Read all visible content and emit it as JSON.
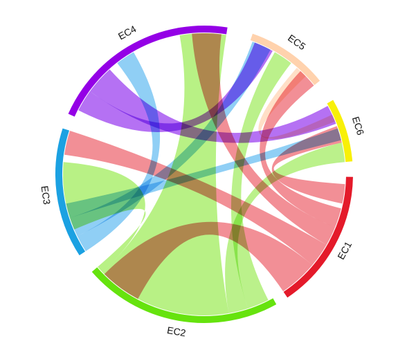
{
  "chart_data": {
    "type": "chord",
    "title": "",
    "sectors": [
      {
        "name": "EC1",
        "color": "#E41A2A",
        "start_deg": 1,
        "end_deg": 56
      },
      {
        "name": "EC2",
        "color": "#66E30E",
        "start_deg": 61,
        "end_deg": 139
      },
      {
        "name": "EC3",
        "color": "#1BA1E2",
        "start_deg": 147,
        "end_deg": 198
      },
      {
        "name": "EC4",
        "color": "#9400E6",
        "start_deg": 204,
        "end_deg": 279
      },
      {
        "name": "EC5",
        "color": "#FFD2AD",
        "start_deg": 289,
        "end_deg": 321
      },
      {
        "name": "EC6",
        "color": "#F8F008",
        "start_deg": 330,
        "end_deg": 355
      }
    ],
    "links": [
      {
        "from": "EC2",
        "to": "EC2",
        "from_range": [
          80,
          136
        ],
        "to_range": [
          260,
          279
        ],
        "color": "#B4F07E",
        "opacity": 0.95
      },
      {
        "from": "EC2",
        "to": "EC3",
        "from_range": [
          136,
          139
        ],
        "to_range": [
          157,
          185
        ],
        "color": "#B4F07E",
        "opacity": 0.95
      },
      {
        "from": "EC2",
        "to": "EC5",
        "from_range": [
          63,
          72
        ],
        "to_range": [
          300,
          308
        ],
        "color": "#B4F07E",
        "opacity": 0.9
      },
      {
        "from": "EC2",
        "to": "EC6",
        "from_range": [
          72,
          80
        ],
        "to_range": [
          347,
          355
        ],
        "color": "#B4F07E",
        "opacity": 0.9
      },
      {
        "from": "EC1",
        "to": "EC2",
        "from_range": [
          40,
          56
        ],
        "to_range": [
          118,
          135
        ],
        "color": "#EE6973",
        "opacity": 0.75
      },
      {
        "from": "EC1",
        "to": "EC3",
        "from_range": [
          30,
          40
        ],
        "to_range": [
          188,
          198
        ],
        "color": "#EE6973",
        "opacity": 0.75
      },
      {
        "from": "EC1",
        "to": "EC4",
        "from_range": [
          22,
          30
        ],
        "to_range": [
          265,
          277
        ],
        "color": "#EE6973",
        "opacity": 0.75
      },
      {
        "from": "EC1",
        "to": "EC5",
        "from_range": [
          14,
          22
        ],
        "to_range": [
          313,
          321
        ],
        "color": "#EE6973",
        "opacity": 0.75
      },
      {
        "from": "EC1",
        "to": "EC6",
        "from_range": [
          4,
          12
        ],
        "to_range": [
          340,
          347
        ],
        "color": "#EE6973",
        "opacity": 0.75
      },
      {
        "from": "EC3",
        "to": "EC4",
        "from_range": [
          147,
          154
        ],
        "to_range": [
          232,
          240
        ],
        "color": "#7CC7F3",
        "opacity": 0.85
      },
      {
        "from": "EC3",
        "to": "EC5",
        "from_range": [
          154,
          162
        ],
        "to_range": [
          290,
          298
        ],
        "color": "#7CC7F3",
        "opacity": 0.85
      },
      {
        "from": "EC3",
        "to": "EC6",
        "from_range": [
          162,
          168
        ],
        "to_range": [
          341,
          346
        ],
        "color": "#7CC7F3",
        "opacity": 0.85
      },
      {
        "from": "EC4",
        "to": "EC5",
        "from_range": [
          207,
          216
        ],
        "to_range": [
          291,
          299
        ],
        "color": "#A24EF0",
        "opacity": 0.8
      },
      {
        "from": "EC4",
        "to": "EC6",
        "from_range": [
          216,
          228
        ],
        "to_range": [
          331,
          339
        ],
        "color": "#A24EF0",
        "opacity": 0.8
      },
      {
        "from": "EC5",
        "to": "EC6",
        "from_range": [
          311,
          316
        ],
        "to_range": [
          335,
          338
        ],
        "color": "#FFD9BD",
        "opacity": 0.85
      }
    ],
    "legend": "none"
  }
}
